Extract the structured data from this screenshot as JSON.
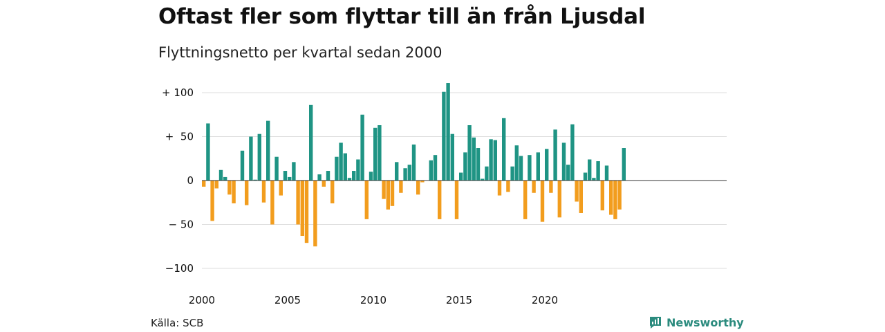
{
  "header": {
    "title": "Oftast fler som flyttar till än från Ljusdal",
    "subtitle": "Flyttningsnetto per kvartal sedan 2000"
  },
  "footer": {
    "source": "Källa: SCB",
    "brand": "Newsworthy"
  },
  "colors": {
    "positive": "#1f9484",
    "negative": "#f29d1e",
    "grid": "#dddddd",
    "brand": "#2b8b7e"
  },
  "chart_data": {
    "type": "bar",
    "title": "Oftast fler som flyttar till än från Ljusdal",
    "subtitle": "Flyttningsnetto per kvartal sedan 2000",
    "ylim": [
      -100,
      100
    ],
    "y_ticks": [
      {
        "value": 100,
        "label": "+ 100"
      },
      {
        "value": 50,
        "label": "+  50"
      },
      {
        "value": 0,
        "label": "0"
      },
      {
        "value": -50,
        "label": "− 50"
      },
      {
        "value": -100,
        "label": "−100"
      }
    ],
    "x_ticks": [
      {
        "value": 2000,
        "label": "2000"
      },
      {
        "value": 2005,
        "label": "2005"
      },
      {
        "value": 2010,
        "label": "2010"
      },
      {
        "value": 2015,
        "label": "2015"
      },
      {
        "value": 2020,
        "label": "2020"
      }
    ],
    "grid": true,
    "start_year": 2000,
    "periods_per_year": 4,
    "values": [
      -7,
      65,
      -46,
      -9,
      12,
      4,
      -16,
      -26,
      0,
      34,
      -28,
      50,
      1,
      53,
      -25,
      68,
      -50,
      27,
      -17,
      11,
      4,
      21,
      -50,
      -63,
      -71,
      86,
      -75,
      7,
      -7,
      11,
      -26,
      27,
      43,
      31,
      3,
      11,
      24,
      75,
      -44,
      10,
      60,
      63,
      -21,
      -33,
      -29,
      21,
      -14,
      14,
      18,
      41,
      -16,
      -2,
      0,
      23,
      29,
      -44,
      101,
      111,
      53,
      -44,
      9,
      32,
      63,
      49,
      37,
      2,
      16,
      47,
      46,
      -17,
      71,
      -13,
      16,
      40,
      28,
      -44,
      29,
      -14,
      32,
      -47,
      36,
      -14,
      58,
      -42,
      43,
      18,
      64,
      -24,
      -37,
      9,
      24,
      3,
      22,
      -34,
      17,
      -39,
      -44,
      -33,
      37
    ]
  }
}
